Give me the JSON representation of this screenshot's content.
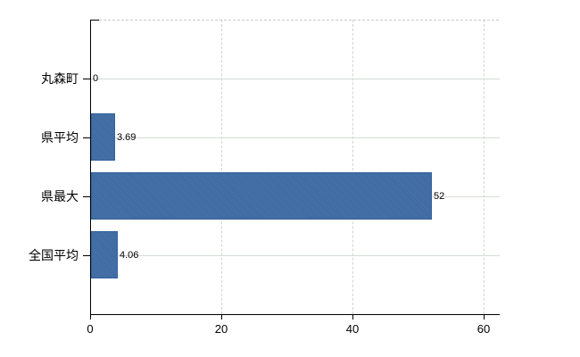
{
  "chart_data": {
    "type": "bar",
    "orientation": "horizontal",
    "title": "",
    "xlabel": "",
    "ylabel": "",
    "categories": [
      "丸森町",
      "県平均",
      "県最大",
      "全国平均"
    ],
    "values": [
      0,
      3.69,
      52,
      4.06
    ],
    "value_labels": [
      "0",
      "3.69",
      "52",
      "4.06"
    ],
    "x_tick_labels": [
      "0",
      "20",
      "40",
      "60"
    ],
    "x_tick_values": [
      0,
      20,
      40,
      60
    ],
    "xlim": [
      0,
      62.4
    ],
    "grid": true,
    "legend_position": "none",
    "colors": {
      "bar_fill": "#3e6ca6",
      "bar_border": "#35619b",
      "axis": "#000000",
      "h_gridline": "#d4dcd4",
      "v_gridline": "#d0d6d0",
      "top_border": "#c9c9c9",
      "text": "#000000",
      "background": "#ffffff"
    }
  }
}
